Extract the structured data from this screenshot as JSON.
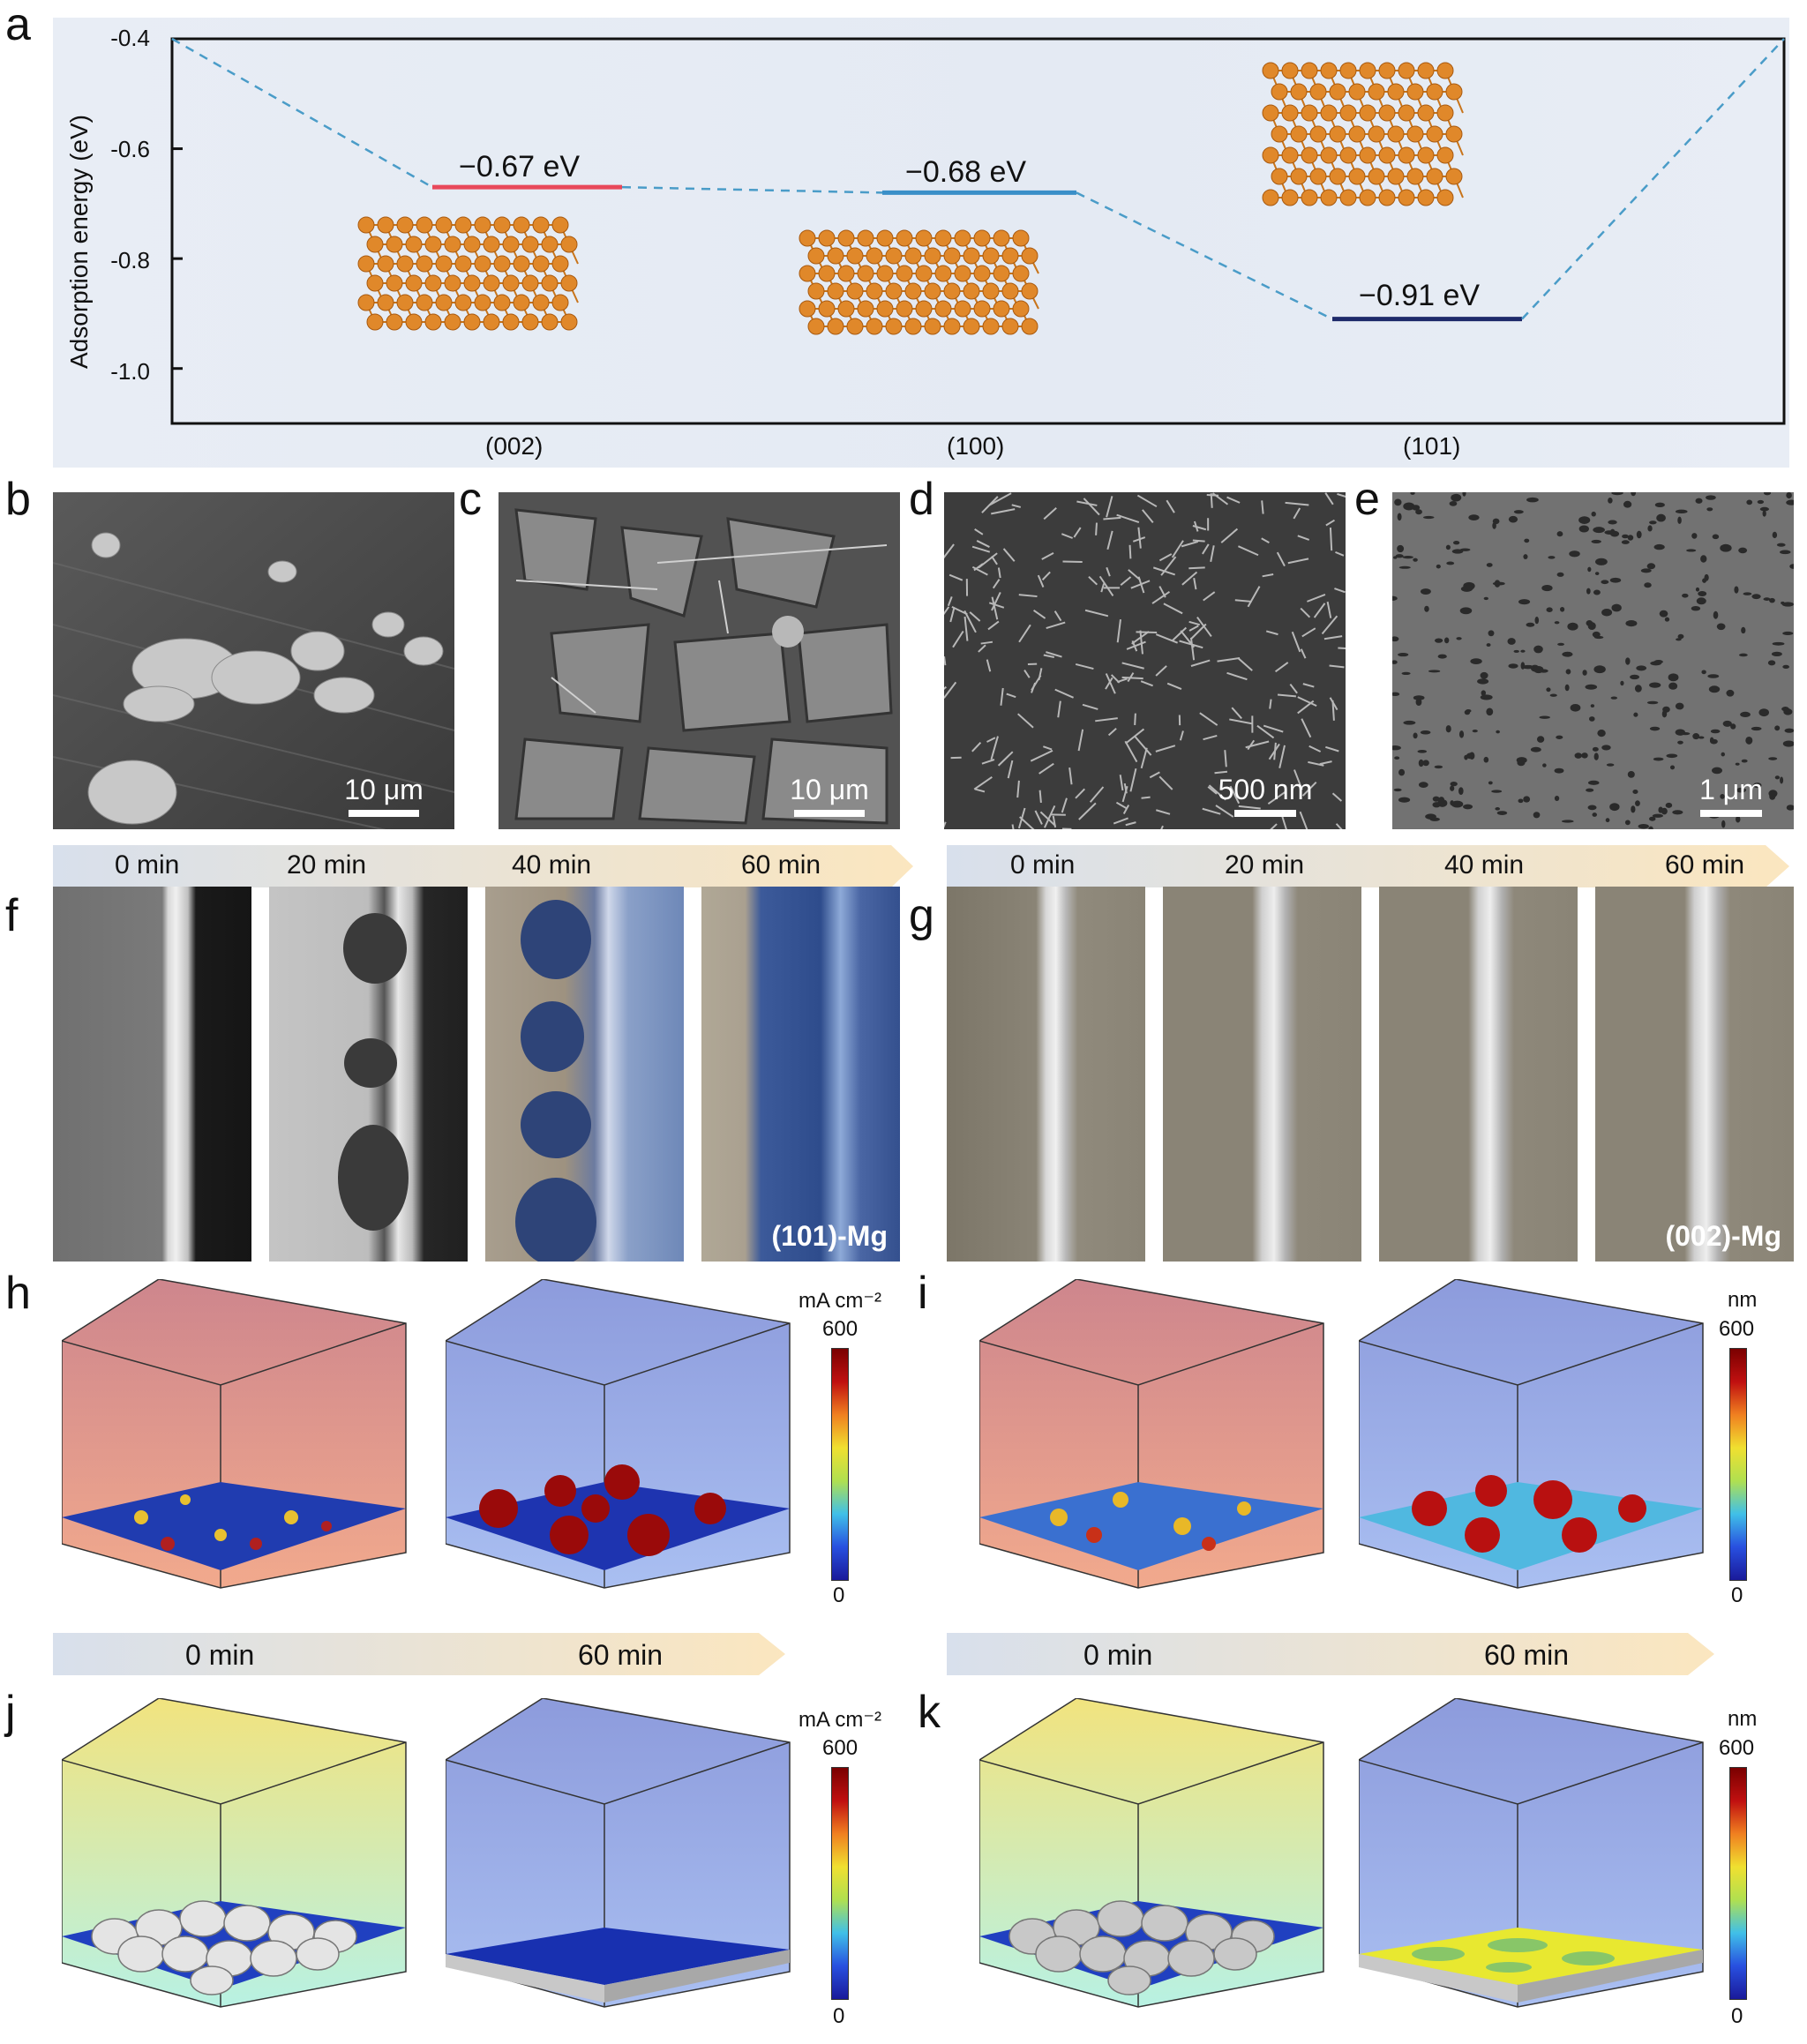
{
  "panels": {
    "a": "a",
    "b": "b",
    "c": "c",
    "d": "d",
    "e": "e",
    "f": "f",
    "g": "g",
    "h": "h",
    "i": "i",
    "j": "j",
    "k": "k"
  },
  "chart_data": {
    "type": "line",
    "ylabel": "Adsorption energy (eV)",
    "ylim": [
      -1.1,
      -0.4
    ],
    "yticks": [
      "-0.4",
      "-0.6",
      "-0.8",
      "-1.0"
    ],
    "categories": [
      "(002)",
      "(100)",
      "(101)"
    ],
    "values": [
      -0.67,
      -0.68,
      -0.91
    ],
    "value_labels": [
      "−0.67 eV",
      "−0.68 eV",
      "−0.91 eV"
    ],
    "level_colors": [
      "#e8485a",
      "#3a8fc8",
      "#1e2a6a"
    ],
    "connector_color": "#4a9cc8",
    "atom_color": "#e0882a"
  },
  "sem": {
    "b_scale": "10 μm",
    "c_scale": "10 μm",
    "d_scale": "500 nm",
    "e_scale": "1 μm"
  },
  "timeline_fg": [
    "0 min",
    "20 min",
    "40 min",
    "60 min"
  ],
  "photo_tags": {
    "f": "(101)-Mg",
    "g": "(002)-Mg"
  },
  "timeline_sim": [
    "0 min",
    "60 min"
  ],
  "colorbars": {
    "h": {
      "unit": "mA cm⁻²",
      "max": "600",
      "min": "0"
    },
    "i": {
      "unit": "nm",
      "max": "600",
      "min": "0"
    },
    "j": {
      "unit": "mA cm⁻²",
      "max": "600",
      "min": "0"
    },
    "k": {
      "unit": "nm",
      "max": "600",
      "min": "0"
    }
  }
}
